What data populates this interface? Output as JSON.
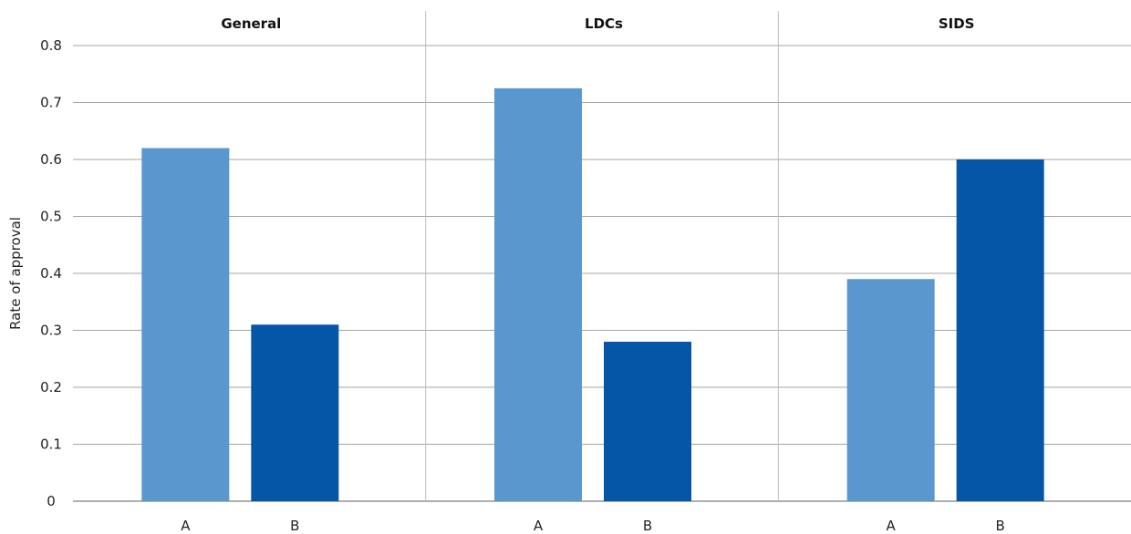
{
  "chart_data": {
    "type": "bar",
    "ylabel": "Rate of approval",
    "ylim": [
      0,
      0.8
    ],
    "yticks": [
      "0",
      "0.1",
      "0.2",
      "0.3",
      "0.4",
      "0.5",
      "0.6",
      "0.7",
      "0.8"
    ],
    "grid": true,
    "panels": [
      {
        "title": "General",
        "categories": [
          "A",
          "B"
        ],
        "values": [
          0.62,
          0.31
        ]
      },
      {
        "title": "LDCs",
        "categories": [
          "A",
          "B"
        ],
        "values": [
          0.725,
          0.28
        ]
      },
      {
        "title": "SIDS",
        "categories": [
          "A",
          "B"
        ],
        "values": [
          0.39,
          0.6
        ]
      }
    ],
    "colors": {
      "A": "#5b97cf",
      "B": "#0457a6"
    }
  }
}
